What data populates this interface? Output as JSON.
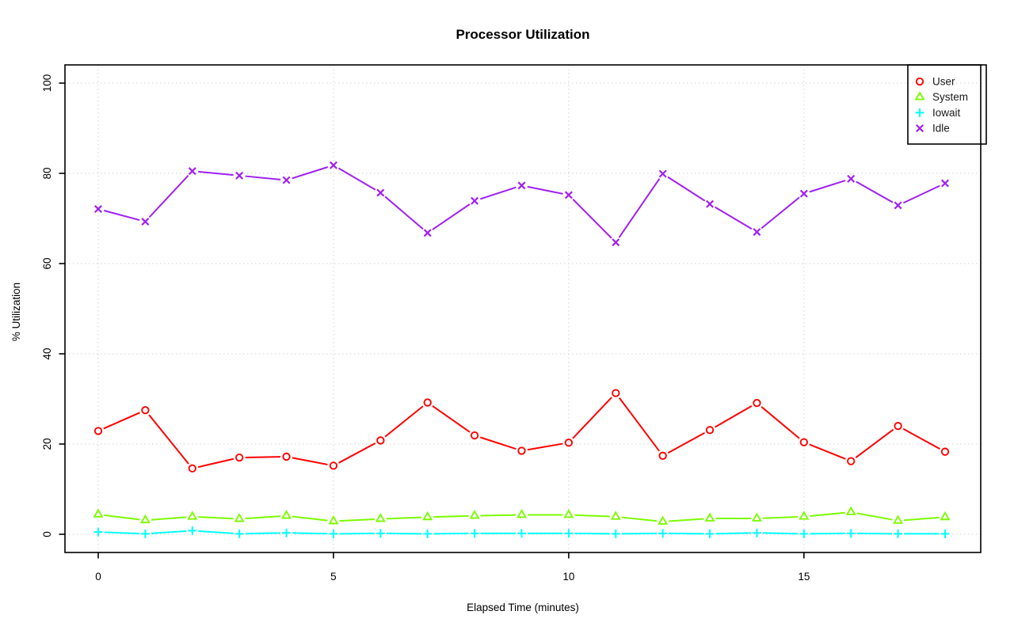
{
  "title": "Processor Utilization",
  "x_axis": {
    "label": "Elapsed Time (minutes)",
    "ticks": [
      0,
      5,
      10,
      15
    ],
    "range": [
      0,
      18
    ]
  },
  "y_axis": {
    "label": "% Utilization",
    "ticks": [
      0,
      20,
      40,
      60,
      80,
      100
    ],
    "range": [
      0,
      100
    ]
  },
  "legend": {
    "position": "topright",
    "entries": [
      {
        "label": "User",
        "marker": "circle",
        "color": "#FF0000"
      },
      {
        "label": "System",
        "marker": "triangle",
        "color": "#7CFC00"
      },
      {
        "label": "Iowait",
        "marker": "plus",
        "color": "#00FFFF"
      },
      {
        "label": "Idle",
        "marker": "x",
        "color": "#A020F0"
      }
    ]
  },
  "colors": {
    "grid": "#D3D3D3",
    "axis": "#000000",
    "background": "#FFFFFF"
  },
  "chart_data": {
    "type": "line",
    "title": "Processor Utilization",
    "xlabel": "Elapsed Time (minutes)",
    "ylabel": "% Utilization",
    "xlim": [
      0,
      18
    ],
    "ylim": [
      0,
      100
    ],
    "grid": true,
    "grid_style": "dotted",
    "legend_position": "topright",
    "x": [
      0,
      1,
      2,
      3,
      4,
      5,
      6,
      7,
      8,
      9,
      10,
      11,
      12,
      13,
      14,
      15,
      16,
      17,
      18
    ],
    "series": [
      {
        "name": "User",
        "marker": "circle",
        "color": "#FF0000",
        "values": [
          22.9,
          27.5,
          14.6,
          17.0,
          17.2,
          15.2,
          20.8,
          29.2,
          21.9,
          18.5,
          20.3,
          31.3,
          17.4,
          23.1,
          29.1,
          20.4,
          16.2,
          24.0,
          18.3
        ]
      },
      {
        "name": "System",
        "marker": "triangle",
        "color": "#7CFC00",
        "values": [
          4.4,
          3.1,
          3.9,
          3.4,
          4.1,
          2.9,
          3.4,
          3.8,
          4.1,
          4.3,
          4.3,
          3.9,
          2.8,
          3.5,
          3.5,
          3.9,
          4.9,
          3.0,
          3.8
        ]
      },
      {
        "name": "Iowait",
        "marker": "plus",
        "color": "#00FFFF",
        "values": [
          0.5,
          0.1,
          0.8,
          0.1,
          0.3,
          0.1,
          0.2,
          0.1,
          0.2,
          0.2,
          0.2,
          0.1,
          0.2,
          0.1,
          0.3,
          0.1,
          0.2,
          0.1,
          0.1
        ]
      },
      {
        "name": "Idle",
        "marker": "x",
        "color": "#A020F0",
        "values": [
          72.1,
          69.3,
          80.5,
          79.5,
          78.5,
          81.8,
          75.7,
          66.8,
          73.9,
          77.3,
          75.2,
          64.7,
          79.9,
          73.2,
          67.0,
          75.5,
          78.8,
          72.9,
          77.8
        ]
      }
    ]
  }
}
